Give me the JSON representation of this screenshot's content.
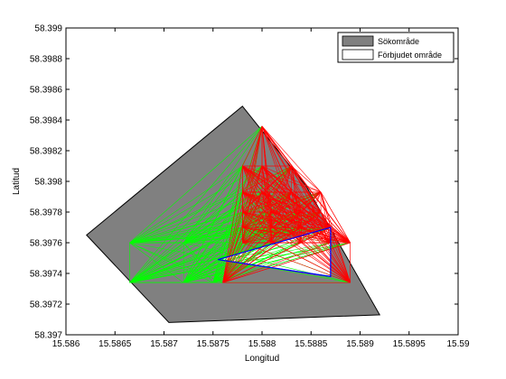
{
  "colors": {
    "search_area_fill": "#808080",
    "search_area_edge": "#000000",
    "forbidden_fill": "#ffffff",
    "forbidden_edge": "#0000ff",
    "green_lines": "#00ff00",
    "red_lines": "#ff0000"
  },
  "chart_data": {
    "type": "scatter",
    "title": "",
    "xlabel": "Longitud",
    "ylabel": "Latitud",
    "xlim": [
      15.586,
      15.59
    ],
    "ylim": [
      58.397,
      58.399
    ],
    "xticks": [
      "15.586",
      "15.5865",
      "15.587",
      "15.5875",
      "15.588",
      "15.5885",
      "15.589",
      "15.5895",
      "15.59"
    ],
    "yticks": [
      "58.397",
      "58.3972",
      "58.3974",
      "58.3976",
      "58.3978",
      "58.398",
      "58.3982",
      "58.3984",
      "58.3986",
      "58.3988",
      "58.399"
    ],
    "grid": false,
    "legend_position": "top-right",
    "legend": [
      {
        "label": "Sökområde",
        "kind": "search-area"
      },
      {
        "label": "Förbjudet område",
        "kind": "forbidden-area"
      }
    ],
    "search_area": {
      "name": "Sökområde",
      "lon": [
        15.58621,
        15.5878,
        15.58845,
        15.5892,
        15.58705,
        15.58621
      ],
      "lat": [
        58.39765,
        58.39849,
        58.39797,
        58.39713,
        58.39708,
        58.39765
      ]
    },
    "forbidden_area": {
      "name": "Förbjudet område",
      "lon": [
        15.58755,
        15.5887,
        15.5887,
        15.58755
      ],
      "lat": [
        58.39749,
        58.3977,
        58.39738,
        58.39749
      ]
    },
    "green_nodes": {
      "lon": [
        15.58665,
        15.58665,
        15.5872,
        15.5872,
        15.5875,
        15.5878,
        15.5878
      ],
      "lat": [
        58.3976,
        58.39734,
        58.3976,
        58.39734,
        58.39734,
        58.3977,
        58.3976
      ]
    },
    "red_nodes": {
      "lon": [
        15.588,
        15.5878,
        15.588,
        15.5883,
        15.5886,
        15.5878,
        15.588,
        15.5883,
        15.5886,
        15.5878,
        15.5881,
        15.5884,
        15.5887,
        15.5878,
        15.5881,
        15.5884,
        15.5887,
        15.5889,
        15.5878,
        15.5881,
        15.5884,
        15.5887,
        15.5889,
        15.5876,
        15.5889
      ],
      "lat": [
        58.39836,
        58.3981,
        58.3981,
        58.3981,
        58.39793,
        58.39793,
        58.39793,
        58.39793,
        58.3978,
        58.3978,
        58.3978,
        58.3978,
        58.3977,
        58.3977,
        58.3977,
        58.3977,
        58.3977,
        58.3976,
        58.3976,
        58.3976,
        58.3976,
        58.3976,
        58.3976,
        58.39734,
        58.39734
      ]
    }
  }
}
